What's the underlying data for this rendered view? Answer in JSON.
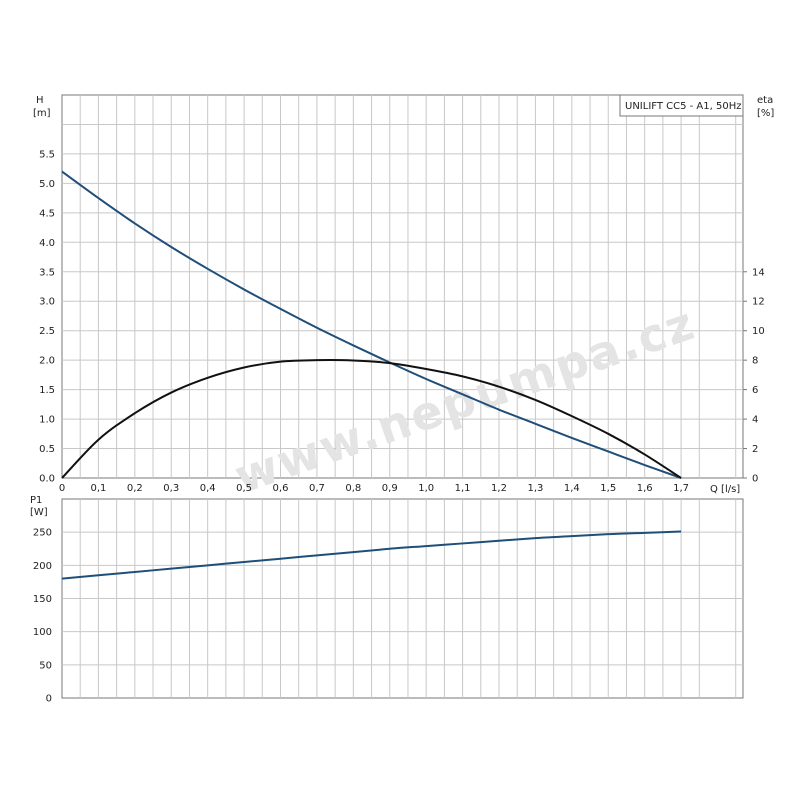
{
  "chart_data": [
    {
      "type": "line",
      "legend": "UNILIFT CC5 - A1, 50Hz",
      "legend_position": "top-right",
      "watermark": "www.nepumpa.cz",
      "grid": true,
      "x_axis": {
        "label": "Q [l/s]",
        "ticks": [
          "0",
          "0,1",
          "0,2",
          "0,3",
          "0,4",
          "0,5",
          "0,6",
          "0,7",
          "0,8",
          "0,9",
          "1,0",
          "1,1",
          "1,2",
          "1,3",
          "1,4",
          "1,5",
          "1,6",
          "1,7"
        ],
        "range": [
          0,
          1.87
        ]
      },
      "y_axis_left": {
        "label_name": "H",
        "label_unit": "[m]",
        "ticks": [
          "0.0",
          "0.5",
          "1.0",
          "1.5",
          "2.0",
          "2.5",
          "3.0",
          "3.5",
          "4.0",
          "4.5",
          "5.0",
          "5.5"
        ],
        "range": [
          0,
          6.5
        ]
      },
      "y_axis_right": {
        "label_name": "eta",
        "label_unit": "[%]",
        "ticks": [
          "0",
          "2",
          "4",
          "6",
          "8",
          "10",
          "12",
          "14"
        ],
        "range": [
          0,
          26
        ]
      },
      "series": [
        {
          "axis": "left",
          "color": "#1f4e79",
          "x": [
            0,
            0.1,
            0.2,
            0.3,
            0.4,
            0.5,
            0.6,
            0.7,
            0.8,
            0.9,
            1.0,
            1.1,
            1.2,
            1.3,
            1.4,
            1.5,
            1.6,
            1.7
          ],
          "y": [
            5.2,
            4.75,
            4.32,
            3.92,
            3.55,
            3.2,
            2.87,
            2.55,
            2.25,
            1.96,
            1.68,
            1.42,
            1.16,
            0.92,
            0.68,
            0.45,
            0.22,
            0.0
          ]
        },
        {
          "axis": "right",
          "color": "#111111",
          "x": [
            0,
            0.1,
            0.2,
            0.3,
            0.4,
            0.5,
            0.6,
            0.7,
            0.8,
            0.9,
            1.0,
            1.1,
            1.2,
            1.3,
            1.4,
            1.5,
            1.6,
            1.7
          ],
          "y": [
            0,
            2.6,
            4.4,
            5.8,
            6.8,
            7.5,
            7.9,
            8.0,
            7.98,
            7.8,
            7.4,
            6.9,
            6.2,
            5.3,
            4.2,
            3.0,
            1.6,
            0.0
          ]
        }
      ]
    },
    {
      "type": "line",
      "grid": true,
      "x_axis": {
        "range": [
          0,
          1.87
        ]
      },
      "y_axis_left": {
        "label_name": "P1",
        "label_unit": "[W]",
        "ticks": [
          "0",
          "50",
          "100",
          "150",
          "200",
          "250"
        ],
        "range": [
          0,
          300
        ]
      },
      "series": [
        {
          "axis": "left",
          "color": "#1f4e79",
          "x": [
            0,
            0.1,
            0.2,
            0.3,
            0.4,
            0.5,
            0.6,
            0.7,
            0.8,
            0.9,
            1.0,
            1.1,
            1.2,
            1.3,
            1.4,
            1.5,
            1.6,
            1.7
          ],
          "y": [
            180,
            185,
            190,
            195,
            200,
            205,
            210,
            215,
            220,
            225,
            229,
            233,
            237,
            241,
            244,
            247,
            249,
            251
          ]
        }
      ]
    }
  ]
}
